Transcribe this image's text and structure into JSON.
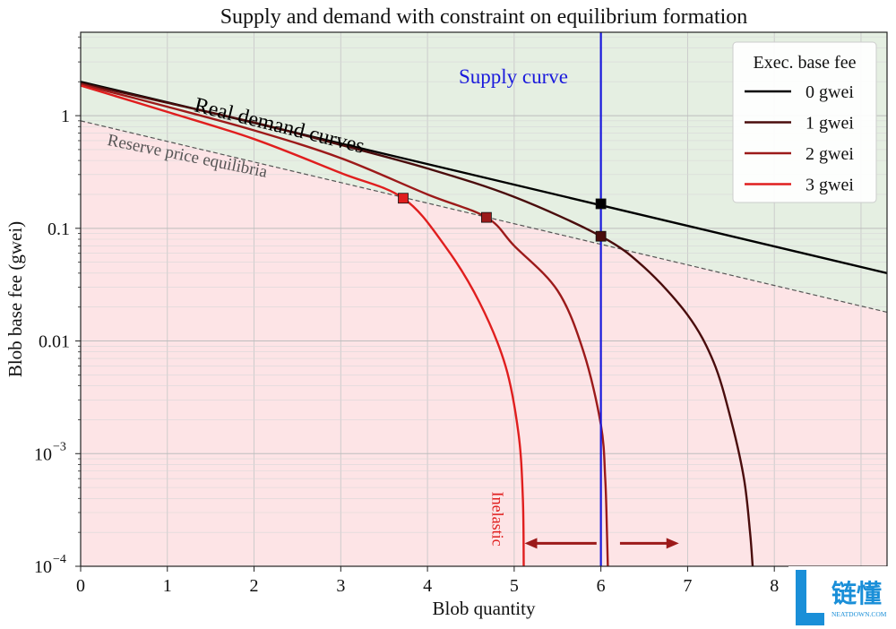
{
  "chart_data": {
    "type": "line",
    "title": "Supply and demand with constraint on equilibrium formation",
    "xlabel": "Blob quantity",
    "ylabel": "Blob base fee (gwei)",
    "xlim": [
      0,
      9.3
    ],
    "ylim": [
      0.0001,
      5.5
    ],
    "yscale": "log",
    "grid": true,
    "x_ticks": [
      0,
      1,
      2,
      3,
      4,
      5,
      6,
      7,
      8
    ],
    "x_tick_labels": [
      "0",
      "1",
      "2",
      "3",
      "4",
      "5",
      "6",
      "7",
      "8"
    ],
    "y_ticks": [
      0.0001,
      0.001,
      0.01,
      0.1,
      1
    ],
    "y_tick_labels": [
      {
        "base": "10",
        "exp": "−4"
      },
      {
        "base": "10",
        "exp": "−3"
      },
      {
        "base": "0.01",
        "exp": ""
      },
      {
        "base": "0.1",
        "exp": ""
      },
      {
        "base": "1",
        "exp": ""
      }
    ],
    "legend": {
      "title": "Exec. base fee",
      "position": "top-right",
      "entries": [
        "0 gwei",
        "1 gwei",
        "2 gwei",
        "3 gwei"
      ]
    },
    "series": [
      {
        "name": "0 gwei",
        "color": "#000000",
        "points": [
          [
            0,
            2.0
          ],
          [
            9.3,
            0.04
          ]
        ]
      },
      {
        "name": "1 gwei",
        "color": "#4a0c0c",
        "points": [
          [
            0,
            1.95
          ],
          [
            1,
            1.3
          ],
          [
            2,
            0.87
          ],
          [
            3,
            0.55
          ],
          [
            4,
            0.34
          ],
          [
            5,
            0.19
          ],
          [
            6,
            0.085
          ],
          [
            6.5,
            0.045
          ],
          [
            7,
            0.017
          ],
          [
            7.3,
            0.0065
          ],
          [
            7.5,
            0.002
          ],
          [
            7.65,
            0.0006
          ],
          [
            7.72,
            0.0002
          ],
          [
            7.75,
            0.0001
          ]
        ]
      },
      {
        "name": "2 gwei",
        "color": "#9c1a1a",
        "points": [
          [
            0,
            1.9
          ],
          [
            1,
            1.2
          ],
          [
            2,
            0.74
          ],
          [
            3,
            0.42
          ],
          [
            4,
            0.2
          ],
          [
            4.68,
            0.125
          ],
          [
            5,
            0.07
          ],
          [
            5.5,
            0.028
          ],
          [
            5.8,
            0.008
          ],
          [
            6.0,
            0.0018
          ],
          [
            6.05,
            0.0006
          ],
          [
            6.07,
            0.0002
          ],
          [
            6.08,
            0.0001
          ]
        ]
      },
      {
        "name": "3 gwei",
        "color": "#e01e1e",
        "points": [
          [
            0,
            1.85
          ],
          [
            1,
            1.08
          ],
          [
            2,
            0.62
          ],
          [
            3,
            0.31
          ],
          [
            3.72,
            0.185
          ],
          [
            4.2,
            0.07
          ],
          [
            4.6,
            0.022
          ],
          [
            4.9,
            0.006
          ],
          [
            5.05,
            0.0015
          ],
          [
            5.1,
            0.0004
          ],
          [
            5.11,
            0.0001
          ]
        ]
      }
    ],
    "supply_curve": {
      "label": "Supply curve",
      "x": 6,
      "color": "#1a1adc"
    },
    "reserve_line": {
      "label": "Reserve price equilibria",
      "points": [
        [
          0,
          0.9
        ],
        [
          9.3,
          0.018
        ]
      ],
      "color": "#555555"
    },
    "equilibria": [
      {
        "series": "0 gwei",
        "x": 6.0,
        "y": 0.165,
        "color": "#000000"
      },
      {
        "series": "1 gwei",
        "x": 6.0,
        "y": 0.085,
        "color": "#4a0c0c"
      },
      {
        "series": "2 gwei",
        "x": 4.68,
        "y": 0.125,
        "color": "#9c1a1a"
      },
      {
        "series": "3 gwei",
        "x": 3.72,
        "y": 0.185,
        "color": "#e01e1e"
      }
    ],
    "annotations": [
      {
        "id": "real-demand",
        "text": "Real demand curves",
        "x": 1.3,
        "y": 1.1,
        "angle": 14,
        "color": "#000000",
        "size": 24
      },
      {
        "id": "reserve",
        "text": "Reserve price equilibria",
        "x": 0.3,
        "y": 0.55,
        "angle": 11.5,
        "color": "#555555",
        "size": 19
      },
      {
        "id": "inelastic",
        "text": "Inelastic",
        "x": 4.75,
        "y": 0.00046,
        "angle": 90,
        "color": "#e01e1e",
        "size": 18
      }
    ],
    "arrows": [
      {
        "id": "left",
        "from": [
          5.95,
          0.00016
        ],
        "to": [
          5.12,
          0.00016
        ],
        "color": "#9c1a1a"
      },
      {
        "id": "right",
        "from": [
          6.22,
          0.00016
        ],
        "to": [
          6.9,
          0.00016
        ],
        "color": "#9c1a1a"
      }
    ],
    "regions": {
      "above": "#e5efe2",
      "below": "#fde4e6"
    }
  },
  "watermark": {
    "text": "链懂",
    "subtext": "NEATDOWN.COM",
    "accent": "#1a8fd8"
  }
}
